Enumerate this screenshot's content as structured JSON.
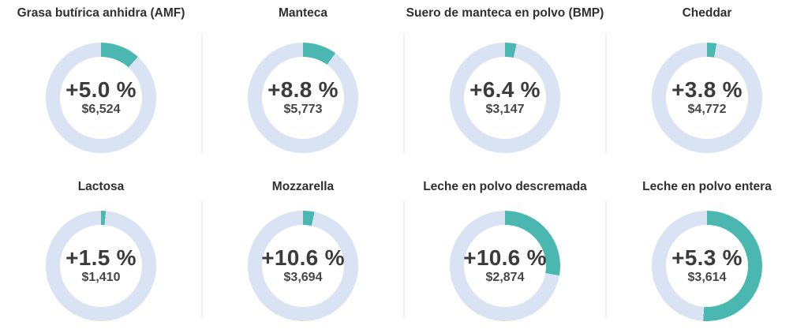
{
  "chart_data": {
    "type": "donut",
    "title": "",
    "description": "Grid of 8 donut gauges showing price change percentage and price (USD) for dairy commodities; teal arc starts at 12 o'clock and sweeps clockwise over a pale blue track",
    "layout": {
      "rows": 2,
      "cols": 4,
      "arc_start": "top",
      "arc_direction": "clockwise",
      "grid": "off",
      "legend": "none"
    },
    "colors": {
      "arc": "#4ab7b1",
      "track": "#d9e3f3",
      "title_text": "#303030",
      "percent_text": "#3b3b3b",
      "price_text": "#474747",
      "separator": "#f2f2f6",
      "background": "#ffffff"
    },
    "items": [
      {
        "label": "Grasa butírica anhidra (AMF)",
        "change_label": "+5.0 %",
        "change_pct": 5.0,
        "price_label": "$6,524",
        "price_usd": 6524,
        "arc_degrees": 42
      },
      {
        "label": "Manteca",
        "change_label": "+8.8 %",
        "change_pct": 8.8,
        "price_label": "$5,773",
        "price_usd": 5773,
        "arc_degrees": 36
      },
      {
        "label": "Suero de manteca en polvo (BMP)",
        "change_label": "+6.4 %",
        "change_pct": 6.4,
        "price_label": "$3,147",
        "price_usd": 3147,
        "arc_degrees": 12
      },
      {
        "label": "Cheddar",
        "change_label": "+3.8 %",
        "change_pct": 3.8,
        "price_label": "$4,772",
        "price_usd": 4772,
        "arc_degrees": 10
      },
      {
        "label": "Lactosa",
        "change_label": "+1.5 %",
        "change_pct": 1.5,
        "price_label": "$1,410",
        "price_usd": 1410,
        "arc_degrees": 5
      },
      {
        "label": "Mozzarella",
        "change_label": "+10.6 %",
        "change_pct": 10.6,
        "price_label": "$3,694",
        "price_usd": 3694,
        "arc_degrees": 12
      },
      {
        "label": "Leche en polvo descremada",
        "change_label": "+10.6 %",
        "change_pct": 10.6,
        "price_label": "$2,874",
        "price_usd": 2874,
        "arc_degrees": 100
      },
      {
        "label": "Leche en polvo entera",
        "change_label": "+5.3 %",
        "change_pct": 5.3,
        "price_label": "$3,614",
        "price_usd": 3614,
        "arc_degrees": 184
      }
    ]
  }
}
